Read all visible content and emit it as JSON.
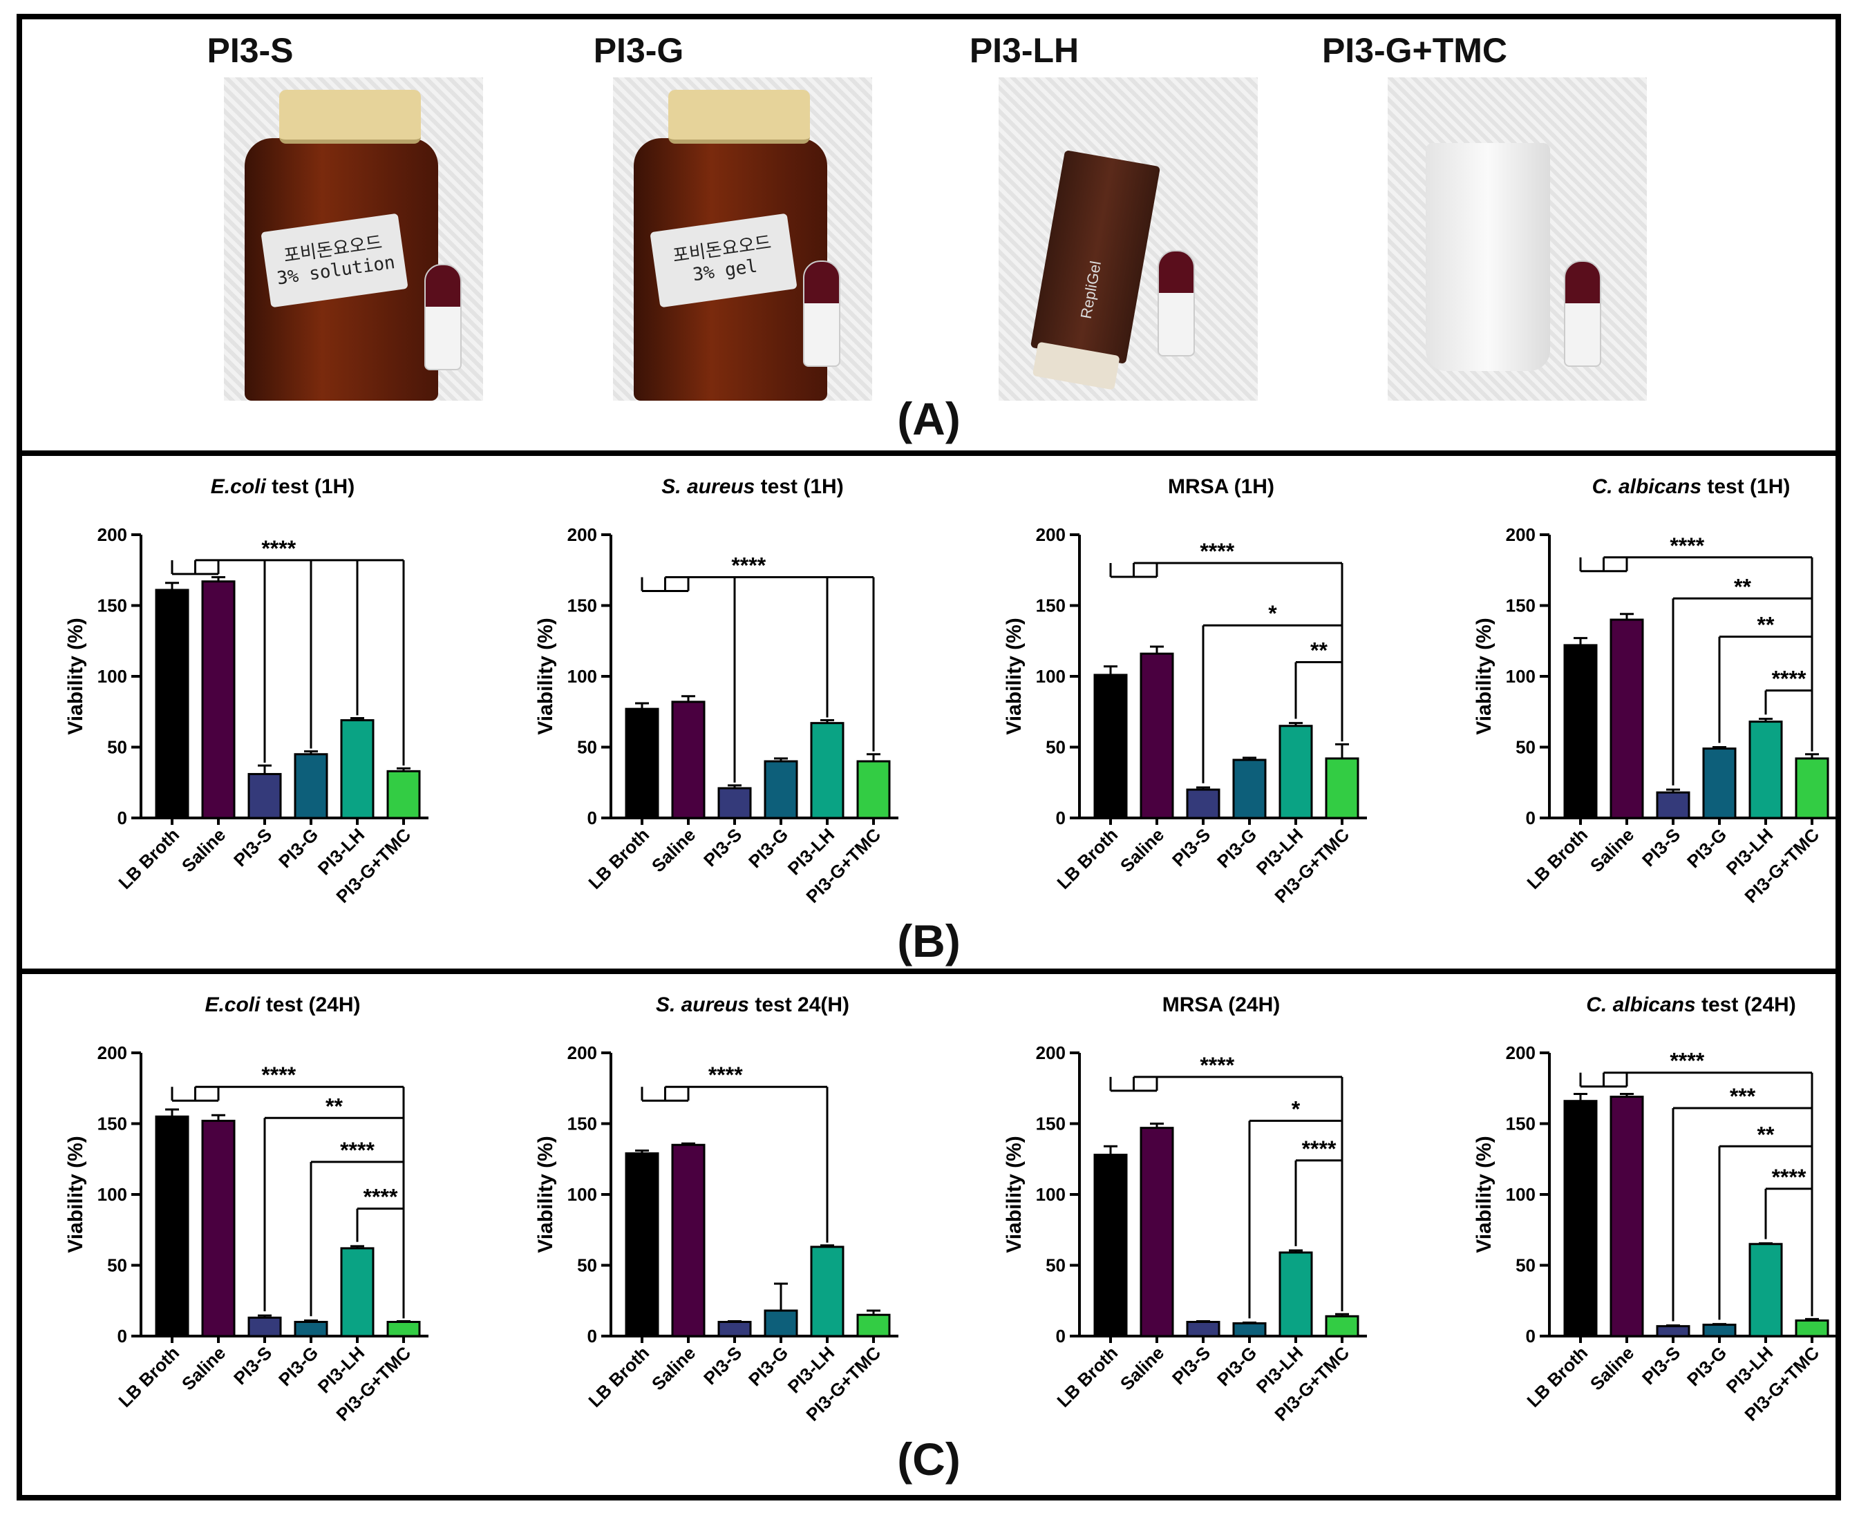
{
  "panelA": {
    "label": "(A)",
    "photos": [
      {
        "title": "PI3-S",
        "jar_label_line1": "포비돈요오드",
        "jar_label_line2": "3% solution"
      },
      {
        "title": "PI3-G",
        "jar_label_line1": "포비돈요오드",
        "jar_label_line2": "3% gel"
      },
      {
        "title": "PI3-LH",
        "tube_brand": "RepliGel"
      },
      {
        "title": "PI3-G+TMC"
      }
    ]
  },
  "panelB": {
    "label": "(B)"
  },
  "panelC": {
    "label": "(C)"
  },
  "colors": {
    "LB Broth": "#000000",
    "Saline": "#4a0040",
    "PI3-S": "#343a7a",
    "PI3-G": "#0d5f7a",
    "PI3-LH": "#0aa384",
    "PI3-G+TMC": "#33cc44"
  },
  "chart_data": [
    {
      "type": "bar",
      "panel": "B",
      "title_italic": "E.coli",
      "title_rest": " test (1H)",
      "ylabel": "Viability (%)",
      "ylim": [
        0,
        200
      ],
      "yticks": [
        0,
        50,
        100,
        150,
        200
      ],
      "categories": [
        "LB Broth",
        "Saline",
        "PI3-S",
        "PI3-G",
        "PI3-LH",
        "PI3-G+TMC"
      ],
      "values": [
        161,
        167,
        31,
        45,
        69,
        33
      ],
      "errors": [
        5,
        3,
        6,
        2,
        1.5,
        2
      ],
      "annotations": [
        {
          "type": "group",
          "from": [
            0,
            1
          ],
          "to": [
            2,
            3,
            4,
            5
          ],
          "y": 182,
          "stars": "****"
        }
      ]
    },
    {
      "type": "bar",
      "panel": "B",
      "title_italic": "S. aureus",
      "title_rest": " test (1H)",
      "ylabel": "Viability (%)",
      "ylim": [
        0,
        200
      ],
      "yticks": [
        0,
        50,
        100,
        150,
        200
      ],
      "categories": [
        "LB Broth",
        "Saline",
        "PI3-S",
        "PI3-G",
        "PI3-LH",
        "PI3-G+TMC"
      ],
      "values": [
        77,
        82,
        21,
        40,
        67,
        40
      ],
      "errors": [
        4,
        4,
        2,
        2,
        2,
        5
      ],
      "annotations": [
        {
          "type": "group",
          "from": [
            0,
            1
          ],
          "to": [
            2,
            4,
            5
          ],
          "y": 170,
          "stars": "****"
        }
      ]
    },
    {
      "type": "bar",
      "panel": "B",
      "title_italic": "",
      "title_rest": "MRSA (1H)",
      "ylabel": "Viability (%)",
      "ylim": [
        0,
        200
      ],
      "yticks": [
        0,
        50,
        100,
        150,
        200
      ],
      "categories": [
        "LB Broth",
        "Saline",
        "PI3-S",
        "PI3-G",
        "PI3-LH",
        "PI3-G+TMC"
      ],
      "values": [
        101,
        116,
        20,
        41,
        65,
        42
      ],
      "errors": [
        6,
        5,
        1.5,
        1.5,
        2,
        10
      ],
      "annotations": [
        {
          "type": "group",
          "from": [
            0,
            1
          ],
          "to": [
            5
          ],
          "y": 180,
          "stars": "****"
        },
        {
          "type": "pair",
          "from": 2,
          "to": 5,
          "y": 136,
          "stars": "*"
        },
        {
          "type": "pair",
          "from": 4,
          "to": 5,
          "y": 110,
          "stars": "**"
        }
      ]
    },
    {
      "type": "bar",
      "panel": "B",
      "title_italic": "C. albicans",
      "title_rest": " test (1H)",
      "ylabel": "Viability (%)",
      "ylim": [
        0,
        200
      ],
      "yticks": [
        0,
        50,
        100,
        150,
        200
      ],
      "categories": [
        "LB Broth",
        "Saline",
        "PI3-S",
        "PI3-G",
        "PI3-LH",
        "PI3-G+TMC"
      ],
      "values": [
        122,
        140,
        18,
        49,
        68,
        42
      ],
      "errors": [
        5,
        4,
        2,
        1,
        2,
        3
      ],
      "annotations": [
        {
          "type": "group",
          "from": [
            0,
            1
          ],
          "to": [
            5
          ],
          "y": 184,
          "stars": "****"
        },
        {
          "type": "pair",
          "from": 2,
          "to": 5,
          "y": 155,
          "stars": "**"
        },
        {
          "type": "pair",
          "from": 3,
          "to": 5,
          "y": 128,
          "stars": "**"
        },
        {
          "type": "pair",
          "from": 4,
          "to": 5,
          "y": 90,
          "stars": "****"
        }
      ]
    },
    {
      "type": "bar",
      "panel": "C",
      "title_italic": "E.coli",
      "title_rest": " test (24H)",
      "ylabel": "Viability (%)",
      "ylim": [
        0,
        200
      ],
      "yticks": [
        0,
        50,
        100,
        150,
        200
      ],
      "categories": [
        "LB Broth",
        "Saline",
        "PI3-S",
        "PI3-G",
        "PI3-LH",
        "PI3-G+TMC"
      ],
      "values": [
        155,
        152,
        13,
        10,
        62,
        10
      ],
      "errors": [
        5,
        4,
        1.5,
        1,
        1.5,
        0.5
      ],
      "annotations": [
        {
          "type": "group",
          "from": [
            0,
            1
          ],
          "to": [
            5
          ],
          "y": 176,
          "stars": "****"
        },
        {
          "type": "pair",
          "from": 2,
          "to": 5,
          "y": 154,
          "stars": "**"
        },
        {
          "type": "pair",
          "from": 3,
          "to": 5,
          "y": 123,
          "stars": "****"
        },
        {
          "type": "pair",
          "from": 4,
          "to": 5,
          "y": 90,
          "stars": "****"
        }
      ]
    },
    {
      "type": "bar",
      "panel": "C",
      "title_italic": "S. aureus",
      "title_rest": " test 24(H)",
      "ylabel": "Viability (%)",
      "ylim": [
        0,
        200
      ],
      "yticks": [
        0,
        50,
        100,
        150,
        200
      ],
      "categories": [
        "LB Broth",
        "Saline",
        "PI3-S",
        "PI3-G",
        "PI3-LH",
        "PI3-G+TMC"
      ],
      "values": [
        129,
        135,
        10,
        18,
        63,
        15
      ],
      "errors": [
        2,
        1,
        0.5,
        19,
        1,
        3
      ],
      "annotations": [
        {
          "type": "group",
          "from": [
            0,
            1
          ],
          "to": [
            4
          ],
          "y": 176,
          "stars": "****"
        }
      ]
    },
    {
      "type": "bar",
      "panel": "C",
      "title_italic": "",
      "title_rest": "MRSA (24H)",
      "ylabel": "Viability (%)",
      "ylim": [
        0,
        200
      ],
      "yticks": [
        0,
        50,
        100,
        150,
        200
      ],
      "categories": [
        "LB Broth",
        "Saline",
        "PI3-S",
        "PI3-G",
        "PI3-LH",
        "PI3-G+TMC"
      ],
      "values": [
        128,
        147,
        10,
        9,
        59,
        14
      ],
      "errors": [
        6,
        3,
        0.5,
        0.5,
        1.5,
        1.5
      ],
      "annotations": [
        {
          "type": "group",
          "from": [
            0,
            1
          ],
          "to": [
            5
          ],
          "y": 183,
          "stars": "****"
        },
        {
          "type": "pair",
          "from": 3,
          "to": 5,
          "y": 152,
          "stars": "*"
        },
        {
          "type": "pair",
          "from": 4,
          "to": 5,
          "y": 124,
          "stars": "****"
        }
      ]
    },
    {
      "type": "bar",
      "panel": "C",
      "title_italic": "C. albicans",
      "title_rest": " test (24H)",
      "ylabel": "Viability (%)",
      "ylim": [
        0,
        200
      ],
      "yticks": [
        0,
        50,
        100,
        150,
        200
      ],
      "categories": [
        "LB Broth",
        "Saline",
        "PI3-S",
        "PI3-G",
        "PI3-LH",
        "PI3-G+TMC"
      ],
      "values": [
        166,
        169,
        7,
        8,
        65,
        11
      ],
      "errors": [
        5,
        2,
        0.5,
        0.5,
        0.5,
        1
      ],
      "annotations": [
        {
          "type": "group",
          "from": [
            0,
            1
          ],
          "to": [
            5
          ],
          "y": 186,
          "stars": "****"
        },
        {
          "type": "pair",
          "from": 2,
          "to": 5,
          "y": 161,
          "stars": "***"
        },
        {
          "type": "pair",
          "from": 3,
          "to": 5,
          "y": 134,
          "stars": "**"
        },
        {
          "type": "pair",
          "from": 4,
          "to": 5,
          "y": 104,
          "stars": "****"
        }
      ]
    }
  ]
}
